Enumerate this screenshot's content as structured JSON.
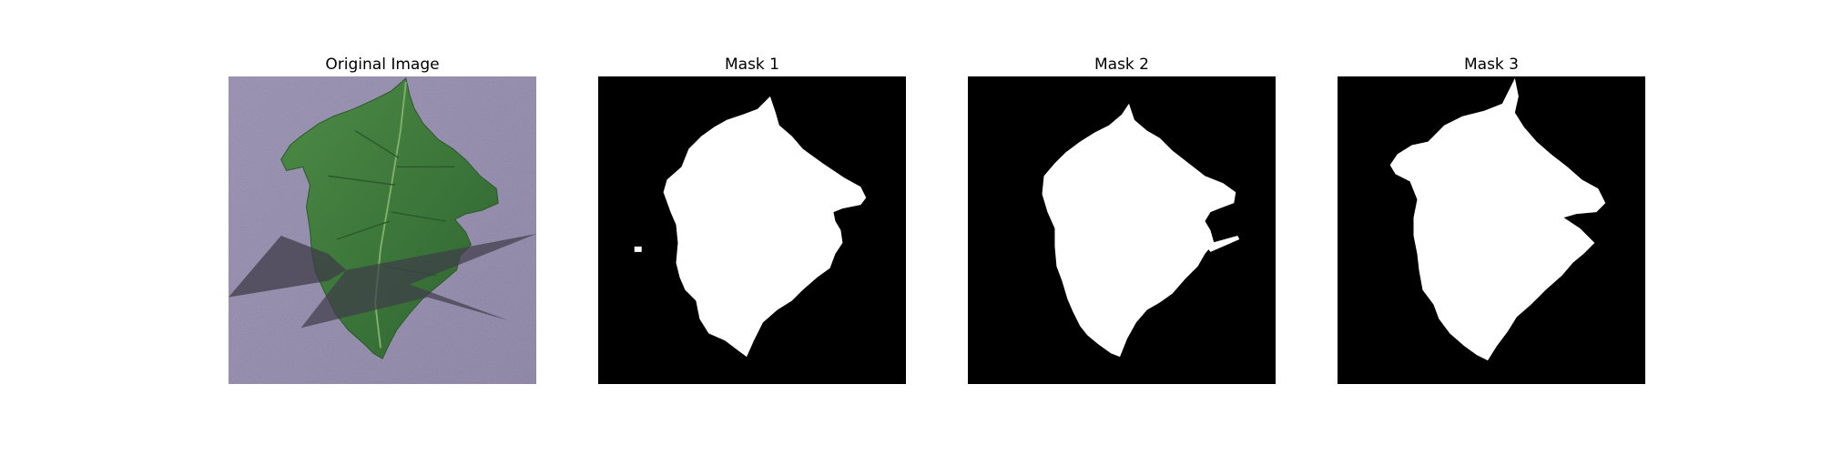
{
  "panels": [
    {
      "title": "Original Image",
      "kind": "photo"
    },
    {
      "title": "Mask 1",
      "kind": "mask"
    },
    {
      "title": "Mask 2",
      "kind": "mask"
    },
    {
      "title": "Mask 3",
      "kind": "mask"
    }
  ],
  "colors": {
    "background": "#ffffff",
    "mask_bg": "#000000",
    "mask_fg": "#ffffff",
    "surface": "#8e86a6",
    "leaf": "#3f7a3c",
    "leaf_dark": "#2f5f2e",
    "shadow": "#4a4752"
  }
}
